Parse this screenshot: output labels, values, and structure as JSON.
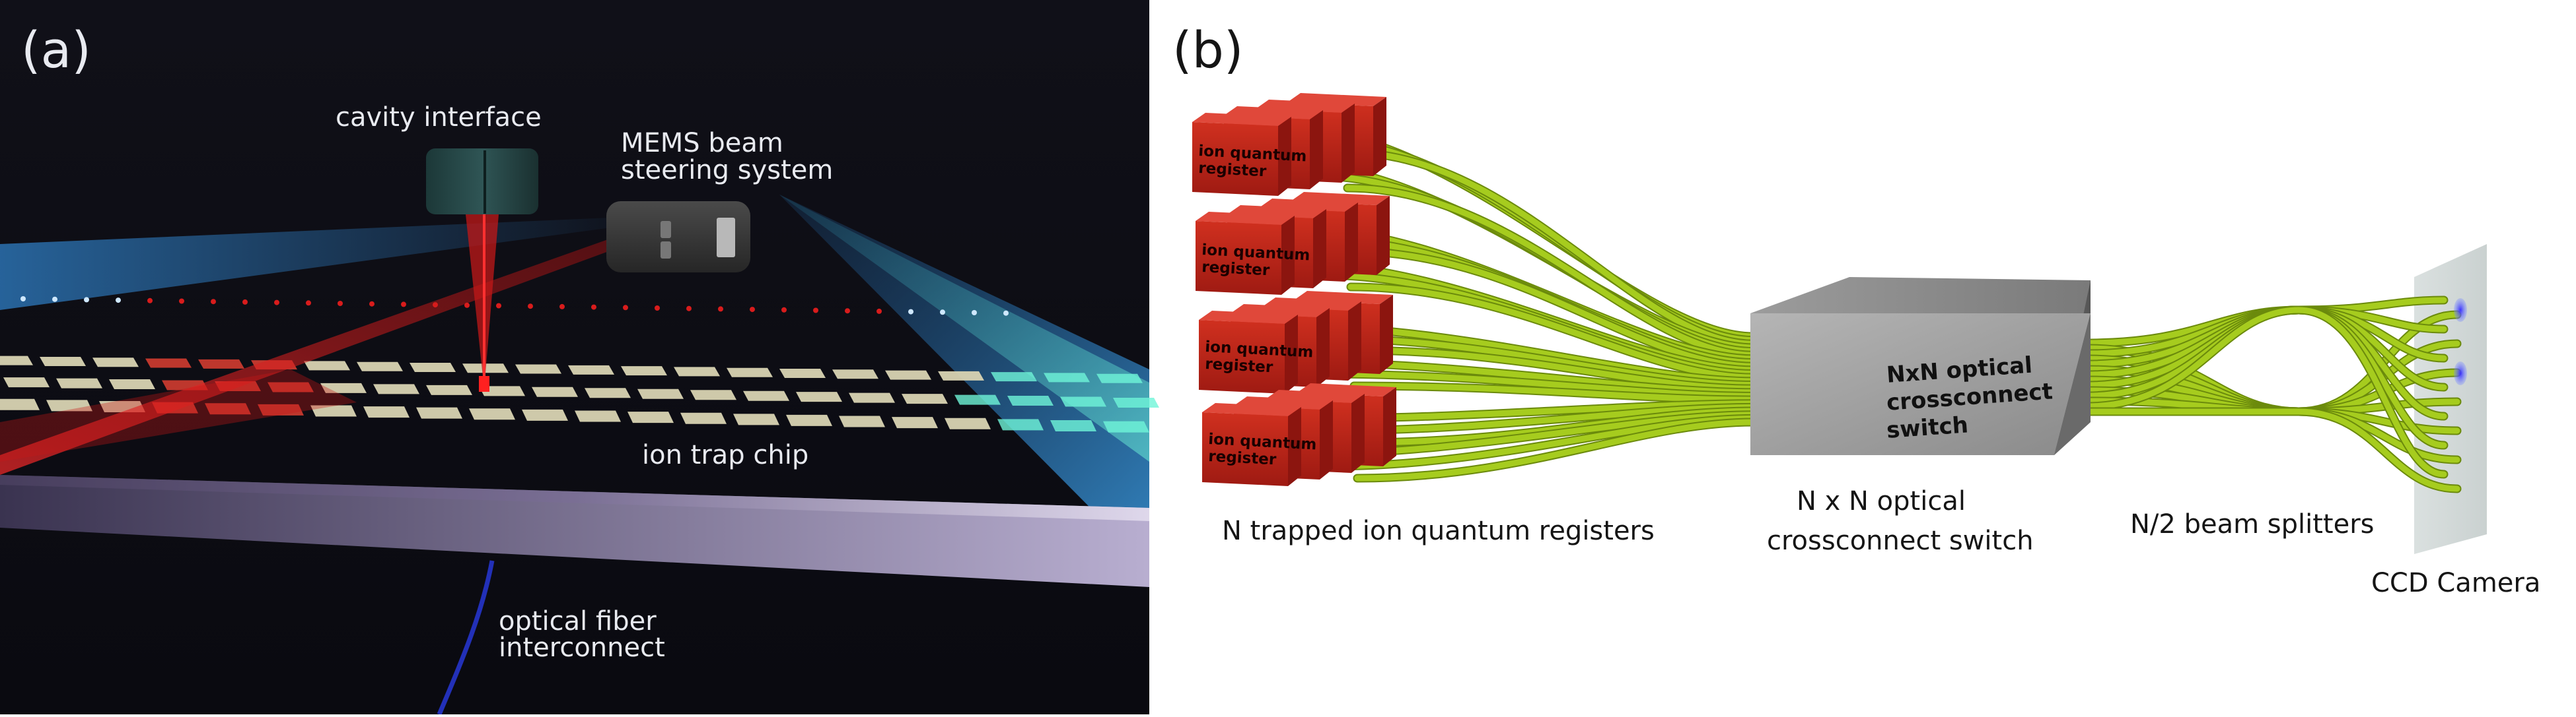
{
  "panel_a": {
    "label": "(a)",
    "cavity_interface": "cavity interface",
    "mems_line1": "MEMS beam",
    "mems_line2": "steering system",
    "ion_trap_chip": "ion trap chip",
    "fiber_line1": "optical fiber",
    "fiber_line2": "interconnect"
  },
  "panel_b": {
    "label": "(b)",
    "registers_caption": "N trapped ion quantum registers",
    "register_label_line1": "ion quantum",
    "register_label_line2": "register",
    "switch_face_line1": "NxN optical",
    "switch_face_line2": "crossconnect",
    "switch_face_line3": "switch",
    "switch_caption_line1": "N x N optical",
    "switch_caption_line2": "crossconnect switch",
    "splitters_caption": "N/2 beam splitters",
    "camera_caption": "CCD Camera"
  },
  "colors": {
    "background_a": "#0f0f17",
    "laser_red": "#d81c1c",
    "beam_blue": "#2f7fc6",
    "beam_cyan": "#6ff5d8",
    "chip_pad": "#d9d4b2",
    "register_red": "#c8241c",
    "fiber_green": "#a6cc1e",
    "switch_grey": "#9a9a9a",
    "camera_grey": "#cfd7d6",
    "spot_blue": "#5a4fe0"
  }
}
